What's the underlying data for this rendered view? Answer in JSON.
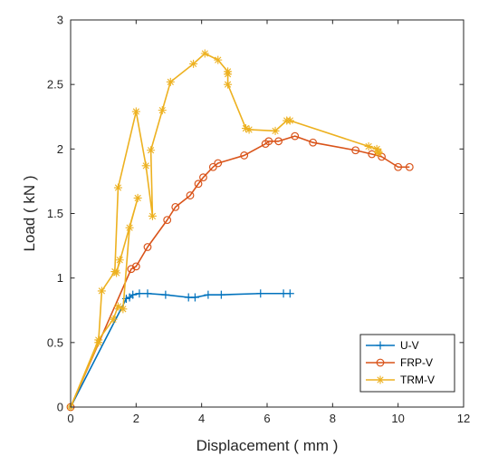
{
  "chart_data": {
    "type": "line",
    "title": "",
    "xlabel": "Displacement ( mm )",
    "ylabel": "Load ( kN )",
    "xlim": [
      0,
      12
    ],
    "ylim": [
      0,
      3
    ],
    "xticks": [
      "0",
      "2",
      "4",
      "6",
      "8",
      "10",
      "12"
    ],
    "yticks": [
      "0",
      "0.5",
      "1",
      "1.5",
      "2",
      "2.5",
      "3"
    ],
    "grid": false,
    "legend_position": "bottom-right",
    "series": [
      {
        "name": "U-V",
        "color": "#0072BD",
        "marker": "plus",
        "points": [
          [
            0,
            0
          ],
          [
            1.7,
            0.84
          ],
          [
            1.8,
            0.85
          ],
          [
            1.9,
            0.87
          ],
          [
            2.1,
            0.88
          ],
          [
            2.35,
            0.88
          ],
          [
            2.9,
            0.87
          ],
          [
            3.6,
            0.85
          ],
          [
            3.8,
            0.85
          ],
          [
            4.2,
            0.87
          ],
          [
            4.6,
            0.87
          ],
          [
            5.8,
            0.88
          ],
          [
            6.5,
            0.88
          ],
          [
            6.7,
            0.88
          ]
        ]
      },
      {
        "name": "FRP-V",
        "color": "#D95319",
        "marker": "circle",
        "points": [
          [
            0,
            0
          ],
          [
            1.85,
            1.07
          ],
          [
            2.0,
            1.09
          ],
          [
            2.35,
            1.24
          ],
          [
            2.95,
            1.45
          ],
          [
            3.2,
            1.55
          ],
          [
            3.65,
            1.64
          ],
          [
            3.9,
            1.73
          ],
          [
            4.05,
            1.78
          ],
          [
            4.35,
            1.86
          ],
          [
            4.5,
            1.89
          ],
          [
            5.3,
            1.95
          ],
          [
            5.95,
            2.04
          ],
          [
            6.05,
            2.06
          ],
          [
            6.35,
            2.06
          ],
          [
            6.85,
            2.1
          ],
          [
            7.4,
            2.05
          ],
          [
            8.7,
            1.99
          ],
          [
            9.2,
            1.96
          ],
          [
            9.5,
            1.94
          ],
          [
            10.0,
            1.86
          ],
          [
            10.35,
            1.86
          ]
        ]
      },
      {
        "name": "TRM-V",
        "color": "#EDB120",
        "marker": "star",
        "points": [
          [
            0,
            0
          ],
          [
            0.85,
            0.5
          ],
          [
            0.95,
            0.9
          ],
          [
            1.35,
            1.05
          ],
          [
            1.45,
            1.7
          ],
          [
            2.0,
            2.29
          ],
          [
            2.3,
            1.87
          ],
          [
            2.5,
            1.48
          ],
          [
            2.45,
            1.99
          ],
          [
            2.8,
            2.3
          ],
          [
            3.05,
            2.52
          ],
          [
            3.75,
            2.66
          ],
          [
            4.1,
            2.74
          ],
          [
            4.5,
            2.69
          ],
          [
            4.8,
            2.6
          ],
          [
            4.8,
            2.58
          ],
          [
            4.8,
            2.5
          ],
          [
            5.35,
            2.16
          ],
          [
            5.45,
            2.15
          ],
          [
            6.25,
            2.14
          ],
          [
            6.6,
            2.22
          ],
          [
            6.7,
            2.22
          ],
          [
            9.1,
            2.02
          ],
          [
            9.35,
            2.0
          ],
          [
            9.4,
            1.97
          ],
          [
            9.4,
            1.98
          ]
        ],
        "extra_points": [
          [
            0.85,
            0.52
          ],
          [
            1.3,
            0.68
          ],
          [
            1.45,
            0.78
          ],
          [
            1.6,
            0.76
          ],
          [
            1.8,
            1.39
          ],
          [
            2.05,
            1.62
          ],
          [
            1.4,
            1.04
          ],
          [
            1.5,
            1.14
          ]
        ]
      }
    ]
  }
}
